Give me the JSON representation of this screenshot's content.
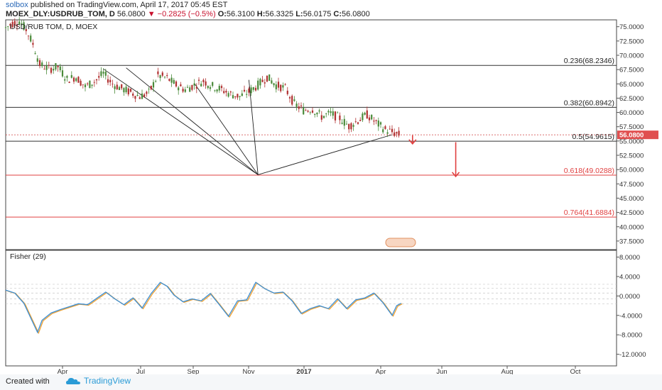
{
  "header": {
    "author": "solbox",
    "published_text": "published on TradingView.com, April 17, 2017 05:45 EST",
    "symbol": "MOEX_DLY:USDRUB_TOM, D",
    "last": "56.0800",
    "change": "−0.2825 (−0.5%)",
    "open_label": "O:",
    "open": "56.3100",
    "high_label": "H:",
    "high": "56.3325",
    "low_label": "L:",
    "low": "56.0175",
    "close_label": "C:",
    "close": "56.0800"
  },
  "footer": {
    "created_with": "Created with",
    "brand": "TradingView"
  },
  "colors": {
    "up": "#4a8a3a",
    "down": "#b03030",
    "fib_red": "#e04040",
    "fisher_a": "#3b8fd6",
    "fisher_b": "#f0a030"
  },
  "chart_data": [
    {
      "type": "candlestick",
      "title": "USD/RUB TOM, D, MOEX",
      "price_label": "56.0800",
      "x_ticks": [
        "Apr",
        "Jul",
        "Sep",
        "Nov",
        "2017",
        "Apr",
        "Jun",
        "Aug",
        "Oct"
      ],
      "y_ticks": [
        "75.0000",
        "72.5000",
        "70.0000",
        "67.5000",
        "65.0000",
        "62.5000",
        "60.0000",
        "57.5000",
        "55.0000",
        "52.5000",
        "50.0000",
        "47.5000",
        "45.0000",
        "42.5000",
        "40.0000",
        "37.5000"
      ],
      "ylim": [
        36,
        76.2
      ],
      "fib_levels": [
        {
          "label": "0.236(68.2346)",
          "value": 68.2346
        },
        {
          "label": "0.382(60.8942)",
          "value": 60.8942
        },
        {
          "label": "0.5(54.9615)",
          "value": 54.9615
        },
        {
          "label": "0.618(49.0288)",
          "value": 49.0288
        },
        {
          "label": "0.764(41.6884)",
          "value": 41.6884
        }
      ],
      "close_path": [
        [
          0,
          74.8
        ],
        [
          3,
          75.6
        ],
        [
          6,
          76.0
        ],
        [
          9,
          74.5
        ],
        [
          12,
          72.0
        ],
        [
          15,
          68.4
        ],
        [
          19,
          67.6
        ],
        [
          23,
          68.0
        ],
        [
          27,
          65.8
        ],
        [
          31,
          66.2
        ],
        [
          35,
          64.5
        ],
        [
          39,
          65.4
        ],
        [
          43,
          66.8
        ],
        [
          47,
          65.0
        ],
        [
          51,
          64.2
        ],
        [
          55,
          63.5
        ],
        [
          59,
          62.8
        ],
        [
          63,
          63.4
        ],
        [
          67,
          66.5
        ],
        [
          71,
          66.0
        ],
        [
          75,
          64.8
        ],
        [
          79,
          64.0
        ],
        [
          83,
          64.8
        ],
        [
          87,
          65.5
        ],
        [
          91,
          64.6
        ],
        [
          95,
          64.0
        ],
        [
          99,
          63.2
        ],
        [
          103,
          62.8
        ],
        [
          107,
          63.6
        ],
        [
          111,
          64.8
        ],
        [
          115,
          66.2
        ],
        [
          119,
          64.8
        ],
        [
          123,
          64.2
        ],
        [
          127,
          61.5
        ],
        [
          131,
          60.4
        ],
        [
          135,
          60.6
        ],
        [
          139,
          59.3
        ],
        [
          143,
          59.8
        ],
        [
          147,
          59.0
        ],
        [
          151,
          57.6
        ],
        [
          155,
          58.6
        ],
        [
          159,
          59.6
        ],
        [
          163,
          58.2
        ],
        [
          167,
          57.0
        ],
        [
          171,
          56.4
        ],
        [
          173,
          56.1
        ]
      ],
      "fan_lines": [
        [
          [
            43,
            67.6
          ],
          [
            111,
            49.1
          ]
        ],
        [
          [
            53,
            67.8
          ],
          [
            111,
            49.1
          ]
        ],
        [
          [
            83,
            65.1
          ],
          [
            111,
            49.1
          ]
        ],
        [
          [
            107,
            65.7
          ],
          [
            111,
            49.1
          ]
        ],
        [
          [
            170,
            56.1
          ],
          [
            111,
            49.1
          ]
        ]
      ],
      "arrows": [
        {
          "x": 179,
          "from": 56.0,
          "to": 54.5
        },
        {
          "x": 198,
          "from": 54.8,
          "to": 48.8
        }
      ]
    },
    {
      "type": "line",
      "title": "Fisher (29)",
      "y_ticks": [
        "8.0000",
        "4.0000",
        "0.0000",
        "-4.0000",
        "-8.0000",
        "-12.0000"
      ],
      "ylim": [
        -14.4,
        9.4
      ],
      "fisher": [
        [
          0,
          1.2
        ],
        [
          4,
          0.6
        ],
        [
          8,
          -1.5
        ],
        [
          12,
          -5.5
        ],
        [
          14,
          -7.5
        ],
        [
          16,
          -5.0
        ],
        [
          20,
          -3.5
        ],
        [
          24,
          -2.8
        ],
        [
          28,
          -2.2
        ],
        [
          32,
          -1.6
        ],
        [
          36,
          -1.8
        ],
        [
          40,
          -0.5
        ],
        [
          44,
          0.8
        ],
        [
          48,
          -0.6
        ],
        [
          52,
          -1.8
        ],
        [
          56,
          -0.4
        ],
        [
          60,
          -2.5
        ],
        [
          64,
          0.5
        ],
        [
          68,
          2.8
        ],
        [
          71,
          2.0
        ],
        [
          74,
          0.2
        ],
        [
          78,
          -1.2
        ],
        [
          82,
          -0.6
        ],
        [
          86,
          -1.0
        ],
        [
          90,
          0.5
        ],
        [
          94,
          -1.8
        ],
        [
          98,
          -4.2
        ],
        [
          102,
          -1.0
        ],
        [
          106,
          -0.8
        ],
        [
          110,
          2.8
        ],
        [
          114,
          1.5
        ],
        [
          118,
          0.6
        ],
        [
          122,
          0.8
        ],
        [
          126,
          -1.0
        ],
        [
          130,
          -3.6
        ],
        [
          134,
          -2.6
        ],
        [
          138,
          -2.0
        ],
        [
          142,
          -2.6
        ],
        [
          146,
          -0.6
        ],
        [
          150,
          -2.6
        ],
        [
          154,
          -0.8
        ],
        [
          158,
          -0.4
        ],
        [
          162,
          0.6
        ],
        [
          166,
          -1.4
        ],
        [
          170,
          -4.0
        ],
        [
          172,
          -2.0
        ],
        [
          174,
          -1.5
        ]
      ]
    }
  ]
}
